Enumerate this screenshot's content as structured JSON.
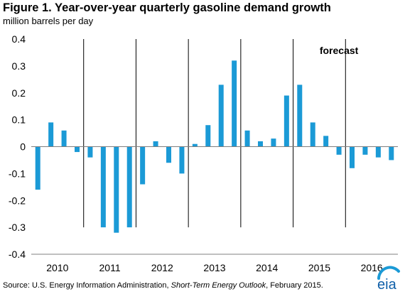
{
  "figure": {
    "title": "Figure 1.  Year-over-year quarterly gasoline demand growth",
    "subtitle": "million barrels per day"
  },
  "source": {
    "prefix": "Source:  U.S. Energy Information Administration, ",
    "publication": "Short-Term Energy Outlook",
    "suffix": ", February 2015."
  },
  "logo": {
    "text": "eia",
    "icon": "eia-logo"
  },
  "colors": {
    "bar": "#1b9ad6",
    "divider": "#000000",
    "axis": "#7f7f7f",
    "logo_text": "#0f5fa8",
    "logo_arc": "#1b9ad6"
  },
  "chart_data": {
    "type": "bar",
    "title": "Figure 1.  Year-over-year quarterly gasoline demand growth",
    "ylabel": "million barrels per day",
    "xlabel": "",
    "ylim": [
      -0.4,
      0.4
    ],
    "yticks": [
      0.4,
      0.3,
      0.2,
      0.1,
      0,
      -0.1,
      -0.2,
      -0.3,
      -0.4
    ],
    "ytick_labels": [
      "0.4",
      "0.3",
      "0.2",
      "0.1",
      "0",
      "-0.1",
      "-0.2",
      "-0.3",
      "-0.4"
    ],
    "years": [
      "2010",
      "2011",
      "2012",
      "2013",
      "2014",
      "2015",
      "2016"
    ],
    "quarters_per_year": 4,
    "values": [
      -0.16,
      0.09,
      0.06,
      -0.02,
      -0.04,
      -0.3,
      -0.32,
      -0.3,
      -0.14,
      0.02,
      -0.06,
      -0.1,
      0.01,
      0.08,
      0.23,
      0.32,
      0.06,
      0.02,
      0.03,
      0.19,
      0.23,
      0.09,
      0.04,
      -0.03,
      -0.08,
      -0.03,
      -0.04,
      -0.05
    ],
    "annotation": "forecast",
    "forecast_start_index": 24,
    "grid": false
  }
}
